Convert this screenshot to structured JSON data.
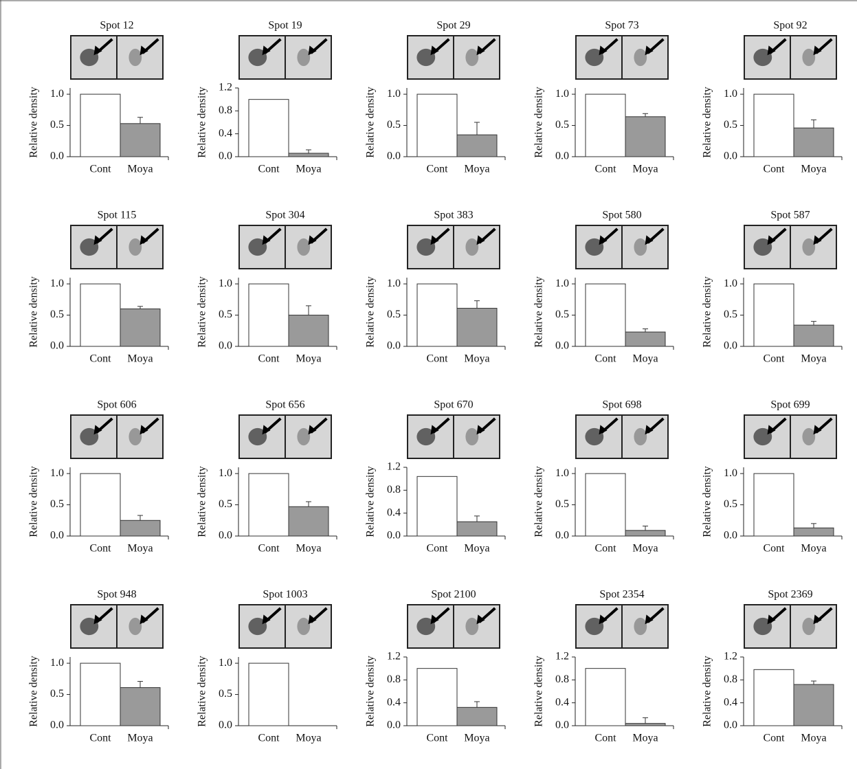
{
  "chart_data": [
    {
      "type": "bar",
      "title": "Spot 12",
      "ylabel": "Relative density",
      "categories": [
        "Cont",
        "Moya"
      ],
      "values": [
        1.0,
        0.53
      ],
      "errors": [
        null,
        0.1
      ],
      "colors": [
        "#ffffff",
        "#9a9a9a"
      ],
      "ylim": [
        0,
        1.1
      ],
      "yticks": [
        {
          "value": 0,
          "label": "0.0"
        },
        {
          "value": 0.5,
          "label": "0.5"
        },
        {
          "value": 1,
          "label": "1.0"
        }
      ]
    },
    {
      "type": "bar",
      "title": "Spot 19",
      "ylabel": "Relative density",
      "categories": [
        "Cont",
        "Moya"
      ],
      "values": [
        1.0,
        0.06
      ],
      "errors": [
        null,
        0.06
      ],
      "colors": [
        "#ffffff",
        "#9a9a9a"
      ],
      "ylim": [
        0,
        1.2
      ],
      "yticks": [
        {
          "value": 0,
          "label": "0.0"
        },
        0.4,
        0.8,
        1.2
      ]
    },
    {
      "type": "bar",
      "title": "Spot 29",
      "ylabel": "Relative density",
      "categories": [
        "Cont",
        "Moya"
      ],
      "values": [
        1.0,
        0.35
      ],
      "errors": [
        null,
        0.2
      ],
      "colors": [
        "#ffffff",
        "#9a9a9a"
      ],
      "ylim": [
        0,
        1.1
      ],
      "yticks": [
        {
          "value": 0,
          "label": "0.0"
        },
        {
          "value": 0.5,
          "label": "0.5"
        },
        {
          "value": 1,
          "label": "1.0"
        }
      ]
    },
    {
      "type": "bar",
      "title": "Spot 73",
      "ylabel": "Relative density",
      "categories": [
        "Cont",
        "Moya"
      ],
      "values": [
        1.0,
        0.64
      ],
      "errors": [
        null,
        0.05
      ],
      "colors": [
        "#ffffff",
        "#9a9a9a"
      ],
      "ylim": [
        0,
        1.1
      ],
      "yticks": [
        {
          "value": 0,
          "label": "0.0"
        },
        {
          "value": 0.5,
          "label": "0.5"
        },
        {
          "value": 1,
          "label": "1.0"
        }
      ]
    },
    {
      "type": "bar",
      "title": "Spot 92",
      "ylabel": "Relative density",
      "categories": [
        "Cont",
        "Moya"
      ],
      "values": [
        1.0,
        0.46
      ],
      "errors": [
        null,
        0.13
      ],
      "colors": [
        "#ffffff",
        "#9a9a9a"
      ],
      "ylim": [
        0,
        1.1
      ],
      "yticks": [
        {
          "value": 0,
          "label": "0.0"
        },
        {
          "value": 0.5,
          "label": "0.5"
        },
        {
          "value": 1,
          "label": "1.0"
        }
      ]
    },
    {
      "type": "bar",
      "title": "Spot 115",
      "ylabel": "Relative density",
      "categories": [
        "Cont",
        "Moya"
      ],
      "values": [
        1.0,
        0.6
      ],
      "errors": [
        null,
        0.04
      ],
      "colors": [
        "#ffffff",
        "#9a9a9a"
      ],
      "ylim": [
        0,
        1.1
      ],
      "yticks": [
        {
          "value": 0,
          "label": "0.0"
        },
        {
          "value": 0.5,
          "label": "0.5"
        },
        {
          "value": 1,
          "label": "1.0"
        }
      ]
    },
    {
      "type": "bar",
      "title": "Spot 304",
      "ylabel": "Relative density",
      "categories": [
        "Cont",
        "Moya"
      ],
      "values": [
        1.0,
        0.5
      ],
      "errors": [
        null,
        0.15
      ],
      "colors": [
        "#ffffff",
        "#9a9a9a"
      ],
      "ylim": [
        0,
        1.1
      ],
      "yticks": [
        {
          "value": 0,
          "label": "0.0"
        },
        {
          "value": 0.5,
          "label": "0.5"
        },
        {
          "value": 1,
          "label": "1.0"
        }
      ]
    },
    {
      "type": "bar",
      "title": "Spot 383",
      "ylabel": "Relative density",
      "categories": [
        "Cont",
        "Moya"
      ],
      "values": [
        1.0,
        0.61
      ],
      "errors": [
        null,
        0.12
      ],
      "colors": [
        "#ffffff",
        "#9a9a9a"
      ],
      "ylim": [
        0,
        1.1
      ],
      "yticks": [
        {
          "value": 0,
          "label": "0.0"
        },
        {
          "value": 0.5,
          "label": "0.5"
        },
        {
          "value": 1,
          "label": "1.0"
        }
      ]
    },
    {
      "type": "bar",
      "title": "Spot 580",
      "ylabel": "Relative density",
      "categories": [
        "Cont",
        "Moya"
      ],
      "values": [
        1.0,
        0.23
      ],
      "errors": [
        null,
        0.05
      ],
      "colors": [
        "#ffffff",
        "#9a9a9a"
      ],
      "ylim": [
        0,
        1.1
      ],
      "yticks": [
        {
          "value": 0,
          "label": "0.0"
        },
        {
          "value": 0.5,
          "label": "0.5"
        },
        {
          "value": 1,
          "label": "1.0"
        }
      ]
    },
    {
      "type": "bar",
      "title": "Spot 587",
      "ylabel": "Relative density",
      "categories": [
        "Cont",
        "Moya"
      ],
      "values": [
        1.0,
        0.34
      ],
      "errors": [
        null,
        0.06
      ],
      "colors": [
        "#ffffff",
        "#9a9a9a"
      ],
      "ylim": [
        0,
        1.1
      ],
      "yticks": [
        {
          "value": 0,
          "label": "0.0"
        },
        {
          "value": 0.5,
          "label": "0.5"
        },
        {
          "value": 1,
          "label": "1.0"
        }
      ]
    },
    {
      "type": "bar",
      "title": "Spot 606",
      "ylabel": "Relative density",
      "categories": [
        "Cont",
        "Moya"
      ],
      "values": [
        1.0,
        0.25
      ],
      "errors": [
        null,
        0.08
      ],
      "colors": [
        "#ffffff",
        "#9a9a9a"
      ],
      "ylim": [
        0,
        1.1
      ],
      "yticks": [
        {
          "value": 0,
          "label": "0.0"
        },
        {
          "value": 0.5,
          "label": "0.5"
        },
        {
          "value": 1,
          "label": "1.0"
        }
      ]
    },
    {
      "type": "bar",
      "title": "Spot 656",
      "ylabel": "Relative density",
      "categories": [
        "Cont",
        "Moya"
      ],
      "values": [
        1.0,
        0.47
      ],
      "errors": [
        null,
        0.08
      ],
      "colors": [
        "#ffffff",
        "#9a9a9a"
      ],
      "ylim": [
        0,
        1.1
      ],
      "yticks": [
        {
          "value": 0,
          "label": "0.0"
        },
        {
          "value": 0.5,
          "label": "0.5"
        },
        {
          "value": 1,
          "label": "1.0"
        }
      ]
    },
    {
      "type": "bar",
      "title": "Spot 670",
      "ylabel": "Relative density",
      "categories": [
        "Cont",
        "Moya"
      ],
      "values": [
        1.04,
        0.25
      ],
      "errors": [
        null,
        0.1
      ],
      "colors": [
        "#ffffff",
        "#9a9a9a"
      ],
      "ylim": [
        0,
        1.2
      ],
      "yticks": [
        {
          "value": 0,
          "label": "0.0"
        },
        0.4,
        0.8,
        1.2
      ]
    },
    {
      "type": "bar",
      "title": "Spot 698",
      "ylabel": "Relative density",
      "categories": [
        "Cont",
        "Moya"
      ],
      "values": [
        1.0,
        0.09
      ],
      "errors": [
        null,
        0.07
      ],
      "colors": [
        "#ffffff",
        "#9a9a9a"
      ],
      "ylim": [
        0,
        1.1
      ],
      "yticks": [
        {
          "value": 0,
          "label": "0.0"
        },
        {
          "value": 0.5,
          "label": "0.5"
        },
        {
          "value": 1,
          "label": "1.0"
        }
      ]
    },
    {
      "type": "bar",
      "title": "Spot 699",
      "ylabel": "Relative density",
      "categories": [
        "Cont",
        "Moya"
      ],
      "values": [
        1.0,
        0.13
      ],
      "errors": [
        null,
        0.07
      ],
      "colors": [
        "#ffffff",
        "#9a9a9a"
      ],
      "ylim": [
        0,
        1.1
      ],
      "yticks": [
        {
          "value": 0,
          "label": "0.0"
        },
        {
          "value": 0.5,
          "label": "0.5"
        },
        {
          "value": 1,
          "label": "1.0"
        }
      ]
    },
    {
      "type": "bar",
      "title": "Spot 948",
      "ylabel": "Relative density",
      "categories": [
        "Cont",
        "Moya"
      ],
      "values": [
        1.0,
        0.61
      ],
      "errors": [
        null,
        0.1
      ],
      "colors": [
        "#ffffff",
        "#9a9a9a"
      ],
      "ylim": [
        0,
        1.1
      ],
      "yticks": [
        {
          "value": 0,
          "label": "0.0"
        },
        {
          "value": 0.5,
          "label": "0.5"
        },
        {
          "value": 1,
          "label": "1.0"
        }
      ]
    },
    {
      "type": "bar",
      "title": "Spot 1003",
      "ylabel": "Relative density",
      "categories": [
        "Cont",
        "Moya"
      ],
      "values": [
        1.0,
        0
      ],
      "errors": [
        null,
        null
      ],
      "colors": [
        "#ffffff",
        "#9a9a9a"
      ],
      "ylim": [
        0,
        1.1
      ],
      "yticks": [
        {
          "value": 0,
          "label": "0.0"
        },
        {
          "value": 0.5,
          "label": "0.5"
        },
        {
          "value": 1,
          "label": "1.0"
        }
      ]
    },
    {
      "type": "bar",
      "title": "Spot 2100",
      "ylabel": "Relative density",
      "categories": [
        "Cont",
        "Moya"
      ],
      "values": [
        1.0,
        0.32
      ],
      "errors": [
        null,
        0.1
      ],
      "colors": [
        "#ffffff",
        "#9a9a9a"
      ],
      "ylim": [
        0,
        1.2
      ],
      "yticks": [
        {
          "value": 0,
          "label": "0.0"
        },
        0.4,
        0.8,
        1.2
      ]
    },
    {
      "type": "bar",
      "title": "Spot 2354",
      "ylabel": "Relative density",
      "categories": [
        "Cont",
        "Moya"
      ],
      "values": [
        1.0,
        0.04
      ],
      "errors": [
        null,
        0.1
      ],
      "colors": [
        "#ffffff",
        "#9a9a9a"
      ],
      "ylim": [
        0,
        1.2
      ],
      "yticks": [
        {
          "value": 0,
          "label": "0.0"
        },
        0.4,
        0.8,
        1.2
      ]
    },
    {
      "type": "bar",
      "title": "Spot 2369",
      "ylabel": "Relative density",
      "categories": [
        "Cont",
        "Moya"
      ],
      "values": [
        0.98,
        0.72
      ],
      "errors": [
        null,
        0.06
      ],
      "colors": [
        "#ffffff",
        "#9a9a9a"
      ],
      "ylim": [
        0,
        1.2
      ],
      "yticks": [
        {
          "value": 0,
          "label": "0.0"
        },
        0.4,
        0.8,
        1.2
      ]
    }
  ]
}
